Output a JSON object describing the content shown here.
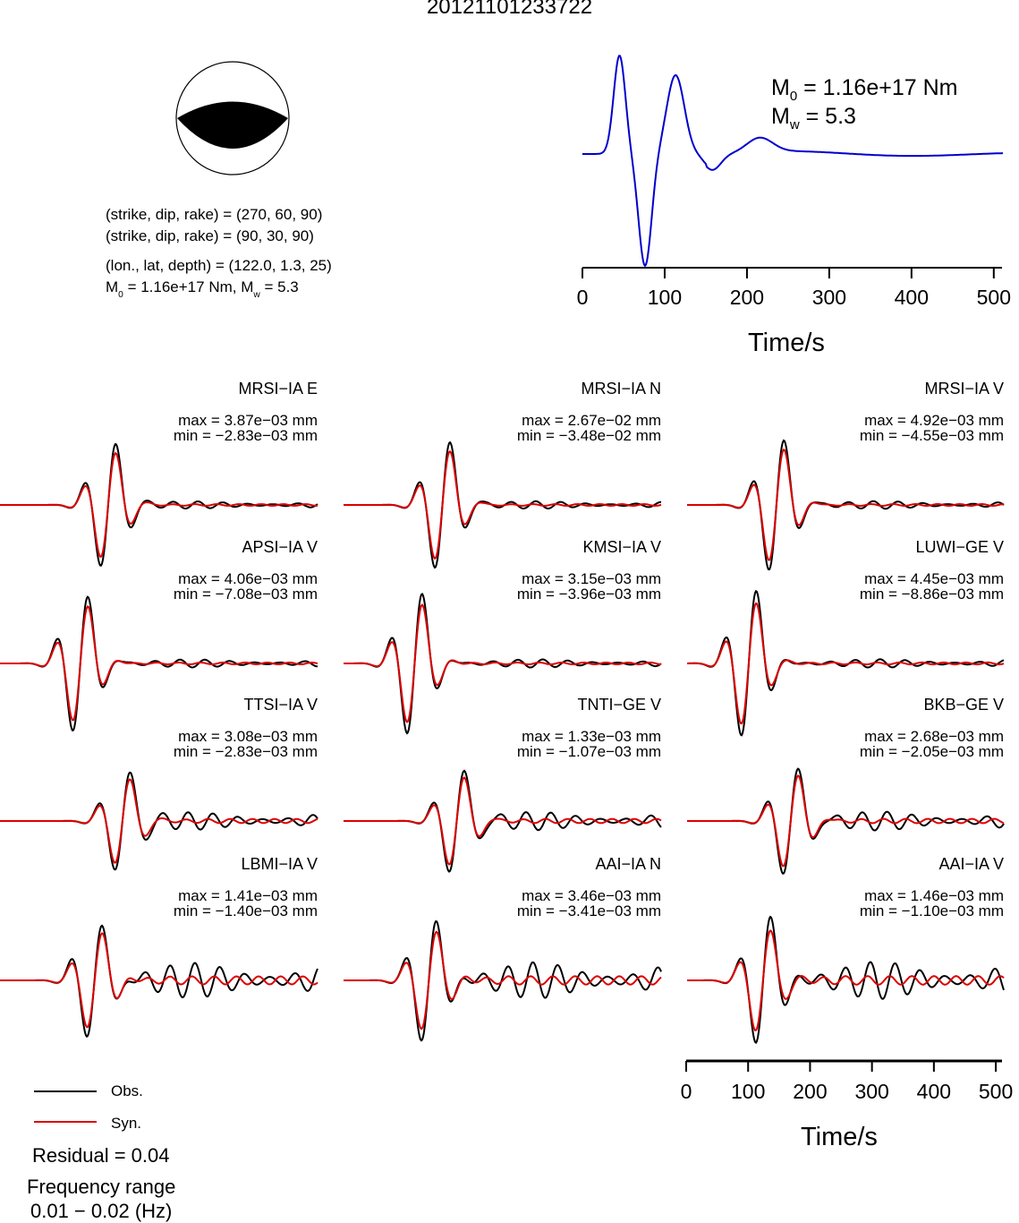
{
  "title": "20121101233722",
  "mechanism": {
    "line1": "(strike, dip, rake) = (270, 60, 90)",
    "line2": "(strike, dip, rake) = (90, 30, 90)",
    "line3": "(lon., lat, depth) = (122.0, 1.3, 25)",
    "line4_pre": "M",
    "line4_sub": "0",
    "line4_mid": " = 1.16e+17 Nm, M",
    "line4_sub2": "w",
    "line4_post": " = 5.3"
  },
  "stf": {
    "m0_pre": "M",
    "m0_sub": "0",
    "m0_post": " = 1.16e+17 Nm",
    "mw_pre": "M",
    "mw_sub": "w",
    "mw_post": " = 5.3",
    "color": "#0000cc"
  },
  "chart_data": {
    "type": "line",
    "x_unit": "Time/s",
    "xlim": [
      0,
      510
    ],
    "x_ticks": [
      0,
      100,
      200,
      300,
      400,
      500
    ],
    "xlabel": "Time/s",
    "obs_color": "#000000",
    "syn_color": "#dd0000",
    "stations": [
      {
        "name": "MRSI−IA E",
        "max": "max = 3.87e−03 mm",
        "min": "min = −2.83e−03 mm"
      },
      {
        "name": "MRSI−IA N",
        "max": "max = 2.67e−02 mm",
        "min": "min = −3.48e−02 mm"
      },
      {
        "name": "MRSI−IA V",
        "max": "max = 4.92e−03 mm",
        "min": "min = −4.55e−03 mm"
      },
      {
        "name": "APSI−IA V",
        "max": "max = 4.06e−03 mm",
        "min": "min = −7.08e−03 mm"
      },
      {
        "name": "KMSI−IA V",
        "max": "max = 3.15e−03 mm",
        "min": "min = −3.96e−03 mm"
      },
      {
        "name": "LUWI−GE V",
        "max": "max = 4.45e−03 mm",
        "min": "min = −8.86e−03 mm"
      },
      {
        "name": "TTSI−IA V",
        "max": "max = 3.08e−03 mm",
        "min": "min = −2.83e−03 mm"
      },
      {
        "name": "TNTI−GE V",
        "max": "max = 1.33e−03 mm",
        "min": "min = −1.07e−03 mm"
      },
      {
        "name": "BKB−GE V",
        "max": "max = 2.68e−03 mm",
        "min": "min = −2.05e−03 mm"
      },
      {
        "name": "LBMI−IA V",
        "max": "max = 1.41e−03 mm",
        "min": "min = −1.40e−03 mm"
      },
      {
        "name": "AAI−IA N",
        "max": "max = 3.46e−03 mm",
        "min": "min = −3.41e−03 mm"
      },
      {
        "name": "AAI−IA V",
        "max": "max = 1.46e−03 mm",
        "min": "min = −1.10e−03 mm"
      }
    ]
  },
  "legend": {
    "obs": "Obs.",
    "syn": "Syn."
  },
  "footer": {
    "residual": "Residual = 0.04",
    "freq1": "Frequency range",
    "freq2": "0.01 − 0.02 (Hz)"
  }
}
